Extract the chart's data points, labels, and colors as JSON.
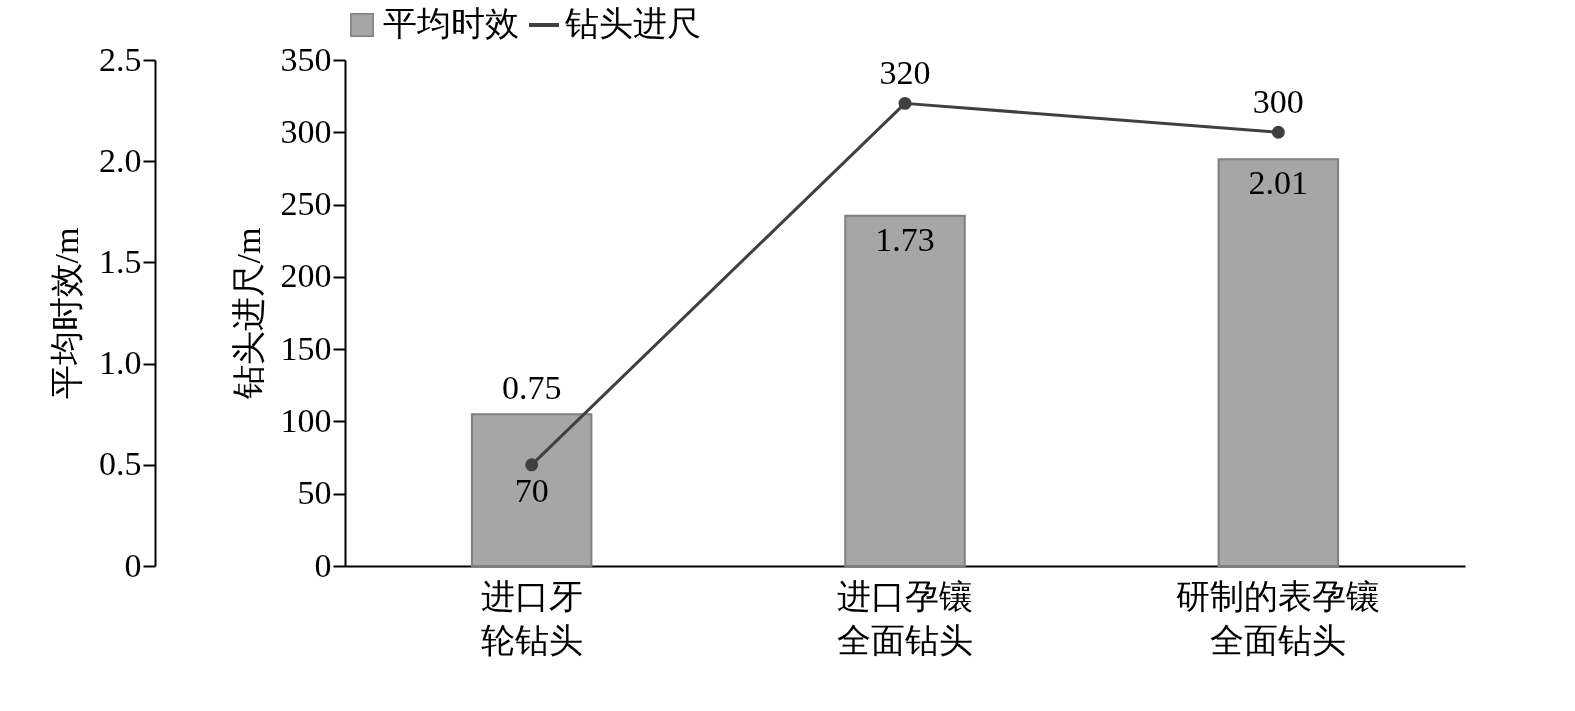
{
  "chart_data": {
    "type": "bar",
    "categories": [
      "进口牙轮钻头",
      "进口孕镶全面钻头",
      "研制的表孕镶全面钻头"
    ],
    "ylabel": "钻头进尺/m",
    "y2label": "平均时效/m",
    "ylim": [
      0,
      350
    ],
    "yticks": [
      0,
      50,
      100,
      150,
      200,
      250,
      300,
      350
    ],
    "y2lim": [
      0,
      2.5
    ],
    "y2ticks": [
      0,
      0.5,
      {
        "value": 1,
        "label": "1.0"
      },
      1.5,
      {
        "value": 2,
        "label": "2.0"
      },
      2.5
    ],
    "series": [
      {
        "name": "平均时效",
        "axis": "y2",
        "color": "#a6a6a6",
        "values": [
          0.75,
          1.73,
          2.01
        ]
      },
      {
        "name": "钻头进尺",
        "type": "line",
        "color": "#404040",
        "values": [
          70,
          320,
          300
        ]
      }
    ],
    "data_labels": true,
    "legend": "top",
    "marker": "circle",
    "grid": false
  }
}
